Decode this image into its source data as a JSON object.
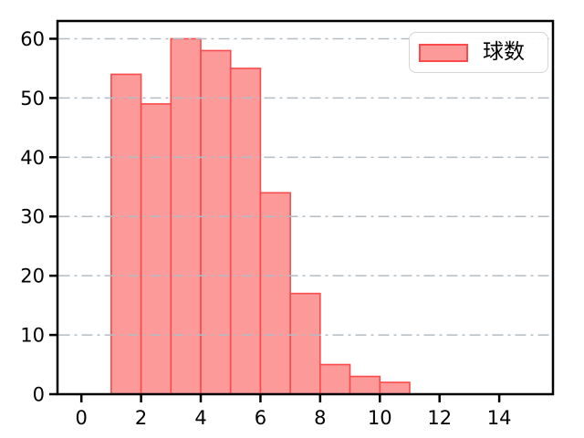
{
  "chart_data": {
    "type": "bar",
    "subtype": "histogram",
    "title": "",
    "xlabel": "",
    "ylabel": "",
    "legend_label": "球数",
    "legend_position": "upper right",
    "bin_edges": [
      1,
      2,
      3,
      4,
      5,
      6,
      7,
      8,
      9,
      10,
      11
    ],
    "values": [
      54,
      49,
      60,
      58,
      55,
      34,
      17,
      5,
      3,
      2
    ],
    "x_ticks": [
      0,
      2,
      4,
      6,
      8,
      10,
      12,
      14
    ],
    "y_ticks": [
      0,
      10,
      20,
      30,
      40,
      50,
      60
    ],
    "xlim": [
      -0.8,
      15.8
    ],
    "ylim": [
      0,
      63
    ],
    "grid": "horizontal dash-dot, drawn above bars",
    "colors": {
      "bar_fill": "#fc9999",
      "bar_edge": "#f94b4b",
      "grid_line": "#b4bcc3",
      "axis": "#000000",
      "legend_border": "#d4d4d4",
      "background": "#ffffff"
    }
  }
}
